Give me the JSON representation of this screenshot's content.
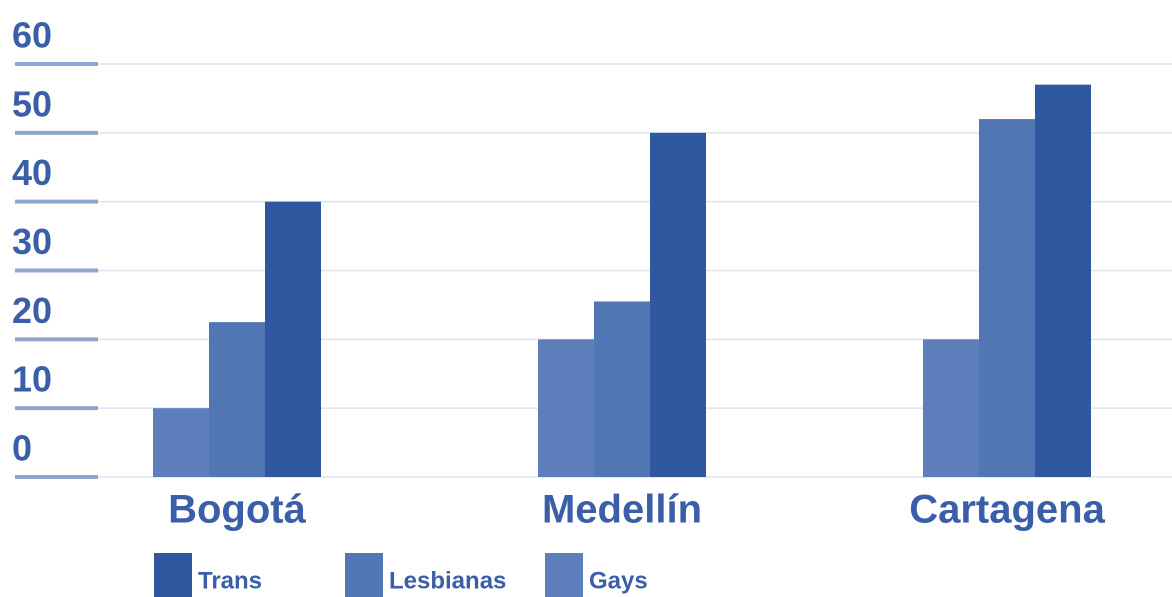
{
  "chart_data": {
    "type": "bar",
    "categories": [
      "Bogotá",
      "Medellín",
      "Cartagena"
    ],
    "series": [
      {
        "name": "Trans",
        "color": "#2f58a0",
        "values": [
          40,
          50,
          57
        ]
      },
      {
        "name": "Lesbianas",
        "color": "#5275b3",
        "values": [
          22.5,
          25.5,
          52
        ]
      },
      {
        "name": "Gays",
        "color": "#5c7fbb",
        "values": [
          10,
          20,
          20
        ]
      }
    ],
    "ylim": [
      0,
      60
    ],
    "yticks": [
      0,
      10,
      20,
      30,
      40,
      50,
      60
    ],
    "grid": true,
    "legend": "bottom"
  }
}
